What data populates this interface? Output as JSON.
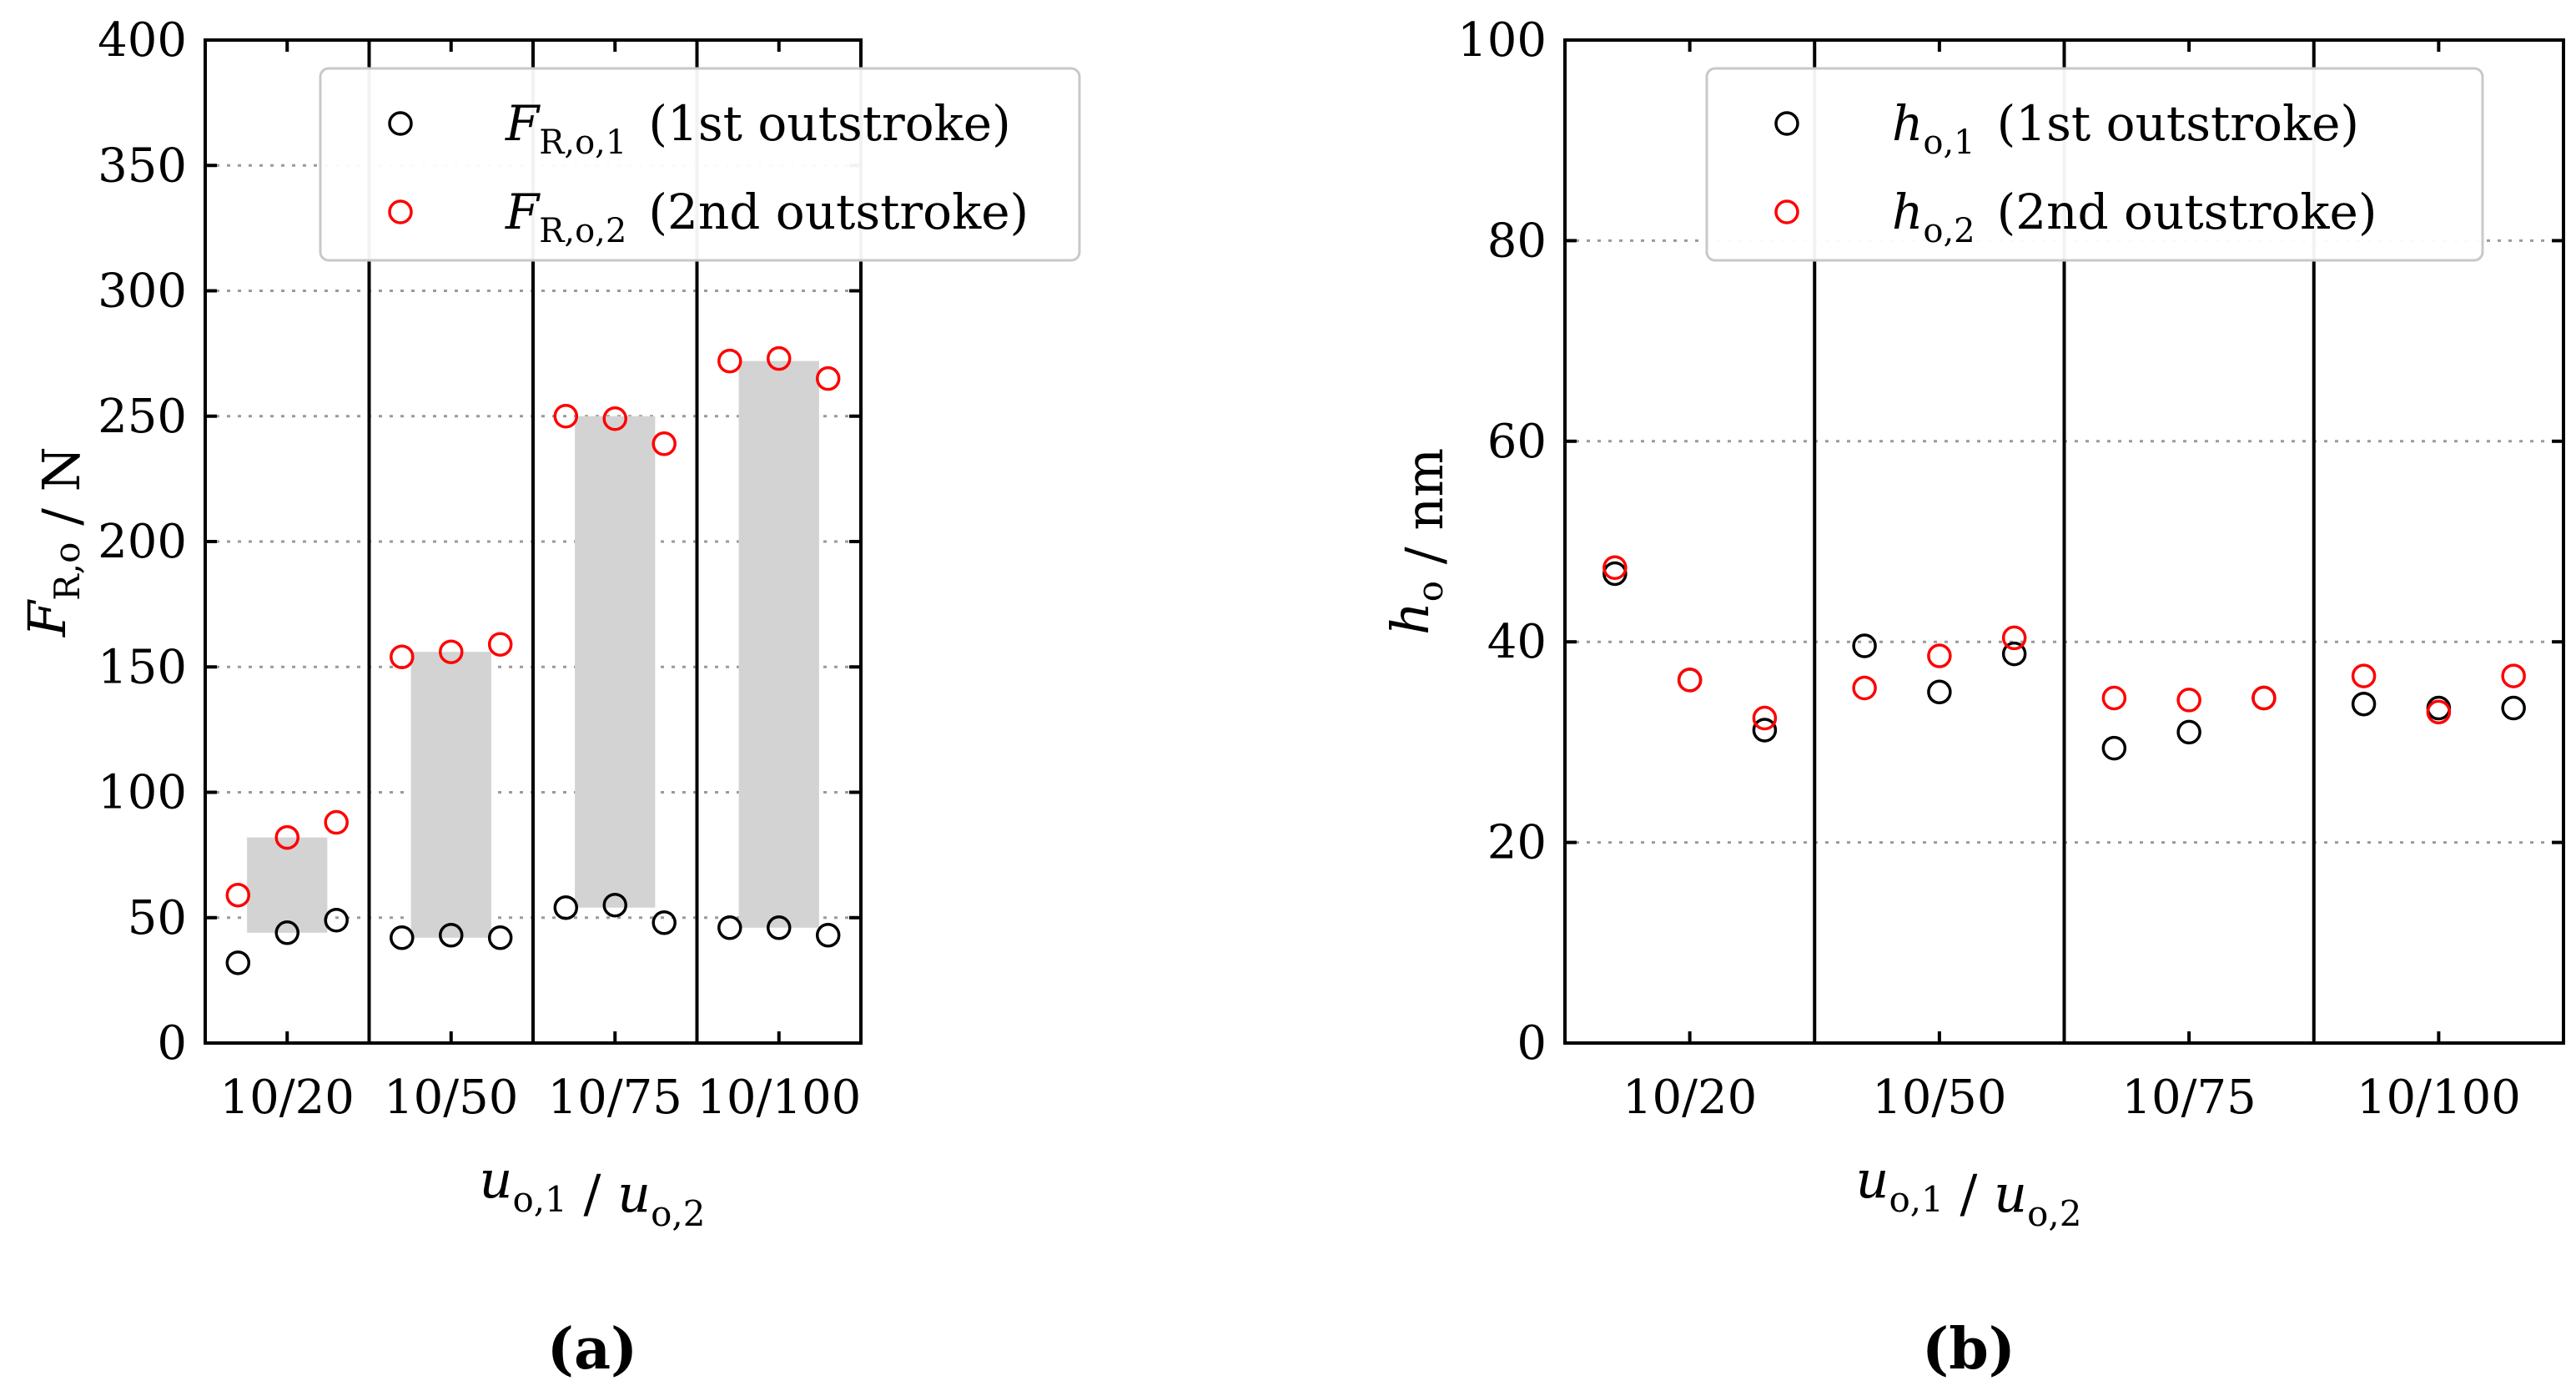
{
  "figure": {
    "panel_labels": {
      "a": "(a)",
      "b": "(b)"
    }
  },
  "chart_data": [
    {
      "type": "scatter",
      "panel": "(a)",
      "categories": [
        "10/20",
        "10/50",
        "10/75",
        "10/100"
      ],
      "xlabel": "u_o,1 / u_o,2",
      "ylabel": "F_R,o / N",
      "ylim": [
        0,
        400
      ],
      "yticks": [
        0,
        50,
        100,
        150,
        200,
        250,
        300,
        350,
        400
      ],
      "grid": true,
      "legend_placement": "top-center",
      "legend": [
        {
          "label": "F_R,o,1  (1st outstroke)",
          "color": "#000000"
        },
        {
          "label": "F_R,o,2  (2nd outstroke)",
          "color": "#ff0000"
        }
      ],
      "ranges": [
        {
          "category": "10/20",
          "low": 44,
          "high": 82
        },
        {
          "category": "10/50",
          "low": 42,
          "high": 156
        },
        {
          "category": "10/75",
          "low": 54,
          "high": 250
        },
        {
          "category": "10/100",
          "low": 46,
          "high": 272
        }
      ],
      "series": [
        {
          "name": "1st outstroke",
          "color": "#000000",
          "values": [
            [
              32,
              44,
              49
            ],
            [
              42,
              43,
              42
            ],
            [
              54,
              55,
              48
            ],
            [
              46,
              46,
              43
            ]
          ]
        },
        {
          "name": "2nd outstroke",
          "color": "#ff0000",
          "values": [
            [
              59,
              82,
              88
            ],
            [
              154,
              156,
              159
            ],
            [
              250,
              249,
              239
            ],
            [
              272,
              273,
              265
            ]
          ]
        }
      ]
    },
    {
      "type": "scatter",
      "panel": "(b)",
      "categories": [
        "10/20",
        "10/50",
        "10/75",
        "10/100"
      ],
      "xlabel": "u_o,1 / u_o,2",
      "ylabel": "h_o / nm",
      "ylim": [
        0,
        100
      ],
      "yticks": [
        0,
        20,
        40,
        60,
        80,
        100
      ],
      "grid": true,
      "legend_placement": "top-center",
      "legend": [
        {
          "label": "h_o,1  (1st outstroke)",
          "color": "#000000"
        },
        {
          "label": "h_o,2  (2nd outstroke)",
          "color": "#ff0000"
        }
      ],
      "series": [
        {
          "name": "1st outstroke",
          "color": "#000000",
          "values": [
            [
              46.8,
              36.2,
              31.2
            ],
            [
              39.6,
              35.0,
              38.8
            ],
            [
              29.4,
              31.0,
              34.4
            ],
            [
              33.8,
              33.4,
              33.4
            ]
          ]
        },
        {
          "name": "2nd outstroke",
          "color": "#ff0000",
          "values": [
            [
              47.4,
              36.2,
              32.4
            ],
            [
              35.4,
              38.6,
              40.4
            ],
            [
              34.4,
              34.2,
              34.4
            ],
            [
              36.6,
              33.0,
              36.6
            ]
          ]
        }
      ]
    }
  ]
}
